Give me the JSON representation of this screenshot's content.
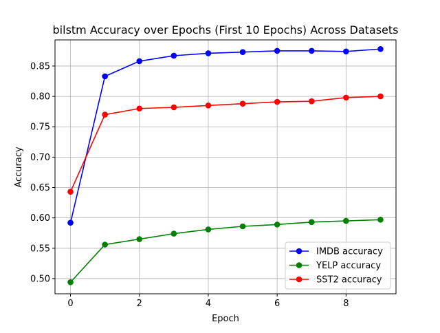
{
  "chart_data": {
    "type": "line",
    "title": "bilstm Accuracy over Epochs (First 10 Epochs) Across Datasets",
    "xlabel": "Epoch",
    "ylabel": "Accuracy",
    "xlim": [
      -0.45,
      9.45
    ],
    "ylim": [
      0.475,
      0.893
    ],
    "xticks": [
      0,
      2,
      4,
      6,
      8
    ],
    "yticks": [
      0.5,
      0.55,
      0.6,
      0.65,
      0.7,
      0.75,
      0.8,
      0.85
    ],
    "ytick_labels": [
      "0.50",
      "0.55",
      "0.60",
      "0.65",
      "0.70",
      "0.75",
      "0.80",
      "0.85"
    ],
    "grid": true,
    "legend_position": "lower right",
    "x": [
      0,
      1,
      2,
      3,
      4,
      5,
      6,
      7,
      8,
      9
    ],
    "series": [
      {
        "name": "IMDB accuracy",
        "color": "#0000ff",
        "values": [
          0.592,
          0.833,
          0.858,
          0.867,
          0.871,
          0.873,
          0.875,
          0.875,
          0.874,
          0.878
        ]
      },
      {
        "name": "YELP accuracy",
        "color": "#008000",
        "values": [
          0.494,
          0.556,
          0.565,
          0.574,
          0.581,
          0.586,
          0.589,
          0.593,
          0.595,
          0.597
        ]
      },
      {
        "name": "SST2 accuracy",
        "color": "#ff0000",
        "values": [
          0.643,
          0.77,
          0.78,
          0.782,
          0.785,
          0.788,
          0.791,
          0.792,
          0.798,
          0.8
        ]
      }
    ]
  }
}
